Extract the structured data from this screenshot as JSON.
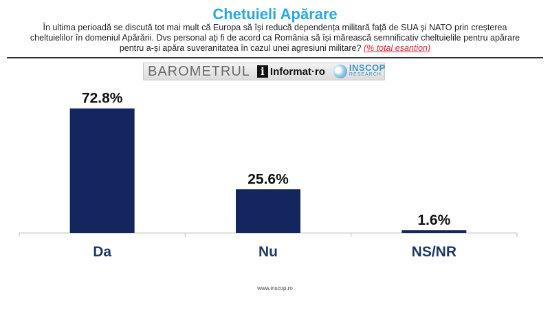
{
  "header": {
    "title": "Chetuieli Apărare",
    "question": "În ultima perioadă se discută tot mai mult că Europa să își reducă dependența militară față de SUA și NATO prin creșterea cheltuielilor în domeniul Apărării. Dvs personal ați fi de acord ca România să își mărească semnificativ cheltuielile pentru apărare pentru a-și apăra suveranitatea în cazul unei agresiuni militare?",
    "question_note": "(% total esantion)"
  },
  "logos": {
    "barometer": "BAROMETRUL",
    "informat": "Informat·ro",
    "inscop": "INSCOP",
    "inscop_sub": "RESEARCH"
  },
  "colors": {
    "bar": "#13265e",
    "title": "#2aa8dd",
    "category_label": "#1f3864",
    "note": "#e0232a"
  },
  "chart_data": {
    "type": "bar",
    "title": "Chetuieli Apărare",
    "categories": [
      "Da",
      "Nu",
      "NS/NR"
    ],
    "values": [
      72.8,
      25.6,
      1.6
    ],
    "value_labels": [
      "72.8%",
      "25.6%",
      "1.6%"
    ],
    "ylim": [
      0,
      100
    ],
    "grid": false,
    "legend": "none"
  },
  "footer": {
    "url": "www.inscop.ro"
  }
}
